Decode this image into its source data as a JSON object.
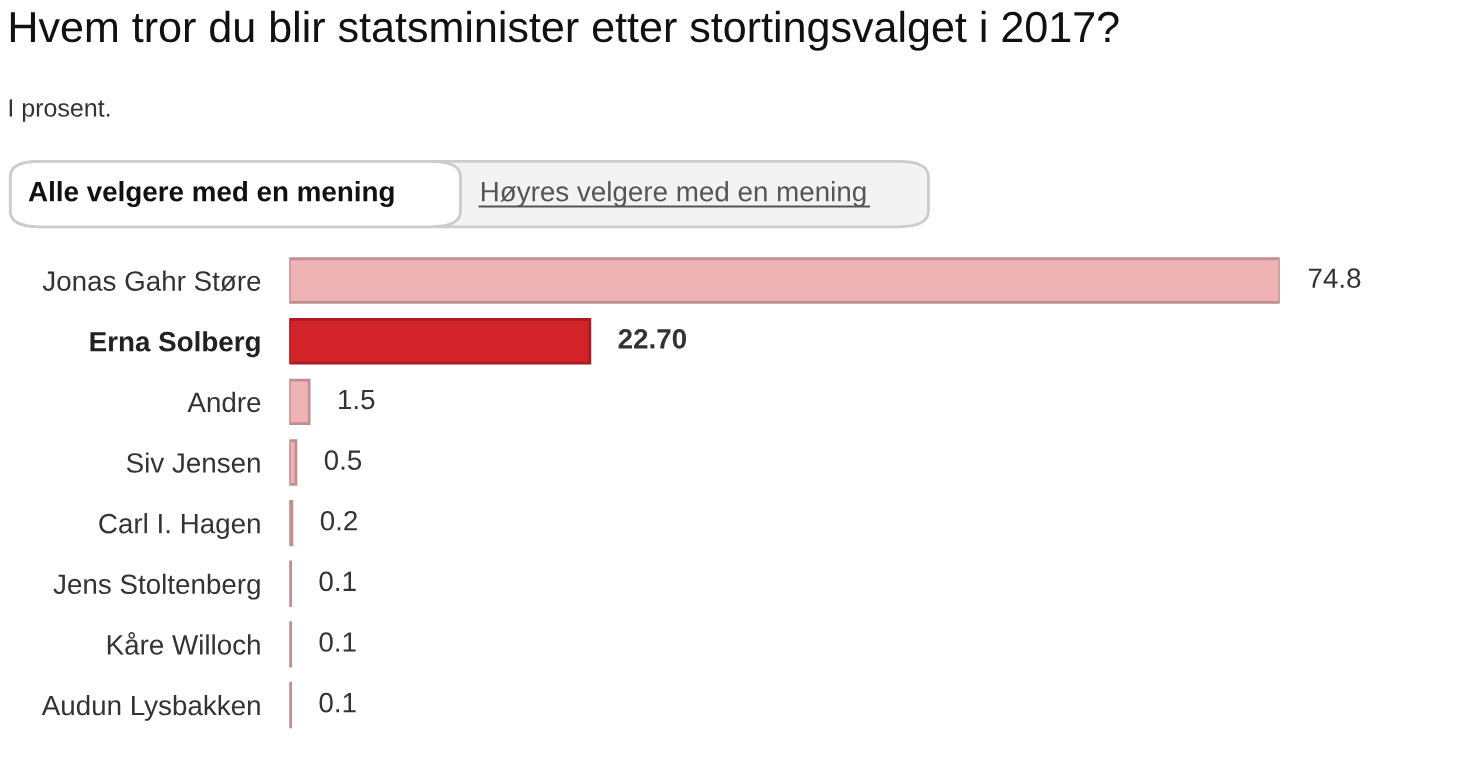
{
  "chart_data": {
    "type": "bar",
    "orientation": "horizontal",
    "title": "Hvem tror du blir statsminister etter stortingsvalget i 2017?",
    "subtitle": "I prosent.",
    "annotations": [
      "Alle velgere med en mening",
      "Høyres velgere med en mening"
    ],
    "categories": [
      "Jonas Gahr Støre",
      "Erna Solberg",
      "Andre",
      "Siv Jensen",
      "Carl I. Hagen",
      "Jens Stoltenberg",
      "Kåre Willoch",
      "Audun Lysbakken"
    ],
    "values": [
      74.8,
      22.7,
      1.5,
      0.5,
      0.2,
      0.1,
      0.1,
      0.1
    ],
    "value_labels": [
      "74.8",
      "22.70",
      "1.5",
      "0.5",
      "0.2",
      "0.1",
      "0.1",
      "0.1"
    ],
    "colors": [
      "#f0b3b5",
      "#d2232a",
      "#f0b3b5",
      "#f0b3b5",
      "#f0b3b5",
      "#f0b3b5",
      "#f0b3b5",
      "#f0b3b5"
    ],
    "grid": false
  }
}
